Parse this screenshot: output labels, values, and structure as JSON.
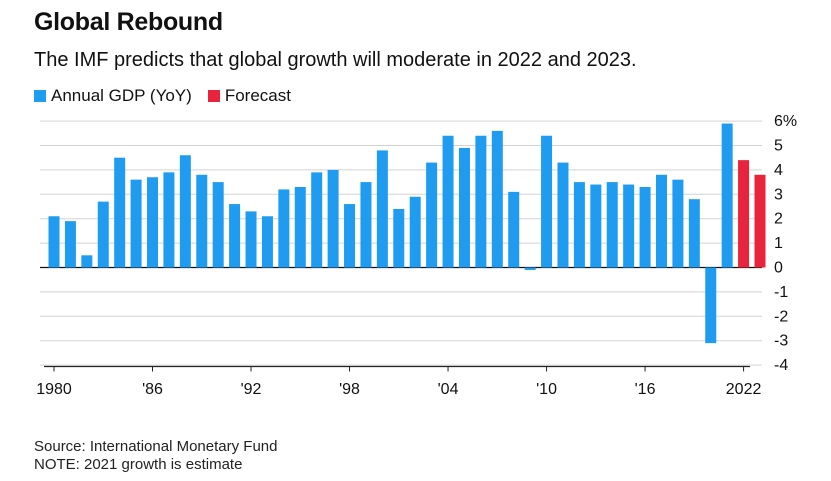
{
  "title": "Global Rebound",
  "subtitle": "The IMF predicts that global growth will moderate in 2022 and 2023.",
  "colors": {
    "actual": "#1f9cf0",
    "forecast": "#e8233c",
    "grid": "#d3d3d3",
    "axis": "#222222"
  },
  "chart_data": {
    "type": "bar",
    "title": "",
    "xlabel": "",
    "ylabel": "",
    "ylim": [
      -4,
      6
    ],
    "yticks": [
      -4,
      -3,
      -2,
      -1,
      0,
      1,
      2,
      3,
      4,
      5,
      6
    ],
    "ytick_labels": [
      "-4",
      "-3",
      "-2",
      "-1",
      "0",
      "1",
      "2",
      "3",
      "4",
      "5",
      "6%"
    ],
    "xtick_labels": [
      {
        "year": 1980,
        "label": "1980"
      },
      {
        "year": 1986,
        "label": "'86"
      },
      {
        "year": 1992,
        "label": "'92"
      },
      {
        "year": 1998,
        "label": "'98"
      },
      {
        "year": 2004,
        "label": "'04"
      },
      {
        "year": 2010,
        "label": "'10"
      },
      {
        "year": 2016,
        "label": "'16"
      },
      {
        "year": 2022,
        "label": "2022"
      }
    ],
    "legend": {
      "position": "top-left"
    },
    "grid": true,
    "series": [
      {
        "name": "Annual GDP (YoY)",
        "color": "#1f9cf0",
        "x": [
          1980,
          1981,
          1982,
          1983,
          1984,
          1985,
          1986,
          1987,
          1988,
          1989,
          1990,
          1991,
          1992,
          1993,
          1994,
          1995,
          1996,
          1997,
          1998,
          1999,
          2000,
          2001,
          2002,
          2003,
          2004,
          2005,
          2006,
          2007,
          2008,
          2009,
          2010,
          2011,
          2012,
          2013,
          2014,
          2015,
          2016,
          2017,
          2018,
          2019,
          2020,
          2021
        ],
        "values": [
          2.1,
          1.9,
          0.5,
          2.7,
          4.5,
          3.6,
          3.7,
          3.9,
          4.6,
          3.8,
          3.5,
          2.6,
          2.3,
          2.1,
          3.2,
          3.3,
          3.9,
          4.0,
          2.6,
          3.5,
          4.8,
          2.4,
          2.9,
          4.3,
          5.4,
          4.9,
          5.4,
          5.6,
          3.1,
          -0.1,
          5.4,
          4.3,
          3.5,
          3.4,
          3.5,
          3.4,
          3.3,
          3.8,
          3.6,
          2.8,
          -3.1,
          5.9
        ]
      },
      {
        "name": "Forecast",
        "color": "#e8233c",
        "x": [
          2022,
          2023
        ],
        "values": [
          4.4,
          3.8
        ]
      }
    ]
  },
  "footer": {
    "source": "Source: International Monetary Fund",
    "note": "NOTE: 2021 growth is estimate"
  }
}
